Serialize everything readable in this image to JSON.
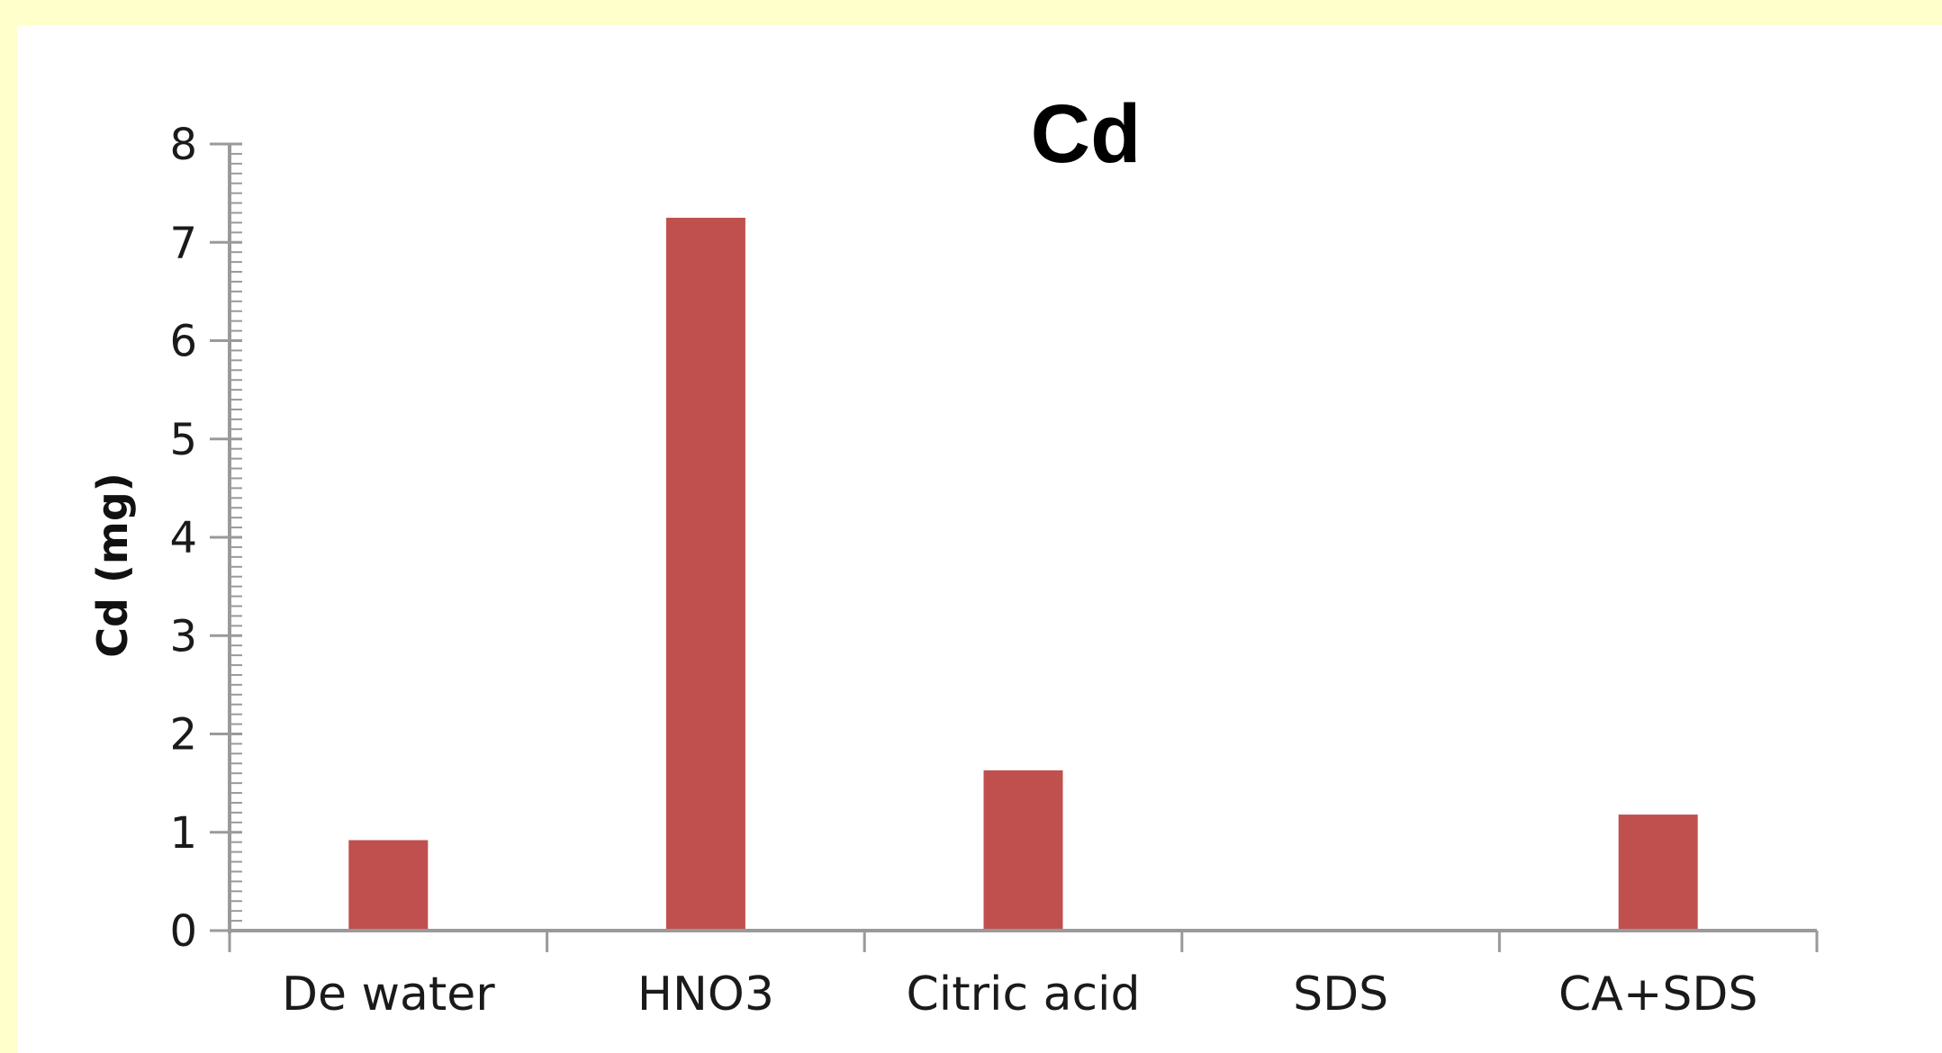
{
  "chart_data": {
    "type": "bar",
    "title": "Cd",
    "xlabel": "",
    "ylabel": "Cd (mg)",
    "categories": [
      "De water",
      "HNO3",
      "Citric acid",
      "SDS",
      "CA+SDS"
    ],
    "values": [
      0.92,
      7.25,
      1.63,
      0.01,
      1.18
    ],
    "ylim": [
      0,
      8
    ],
    "yticks": [
      0,
      1,
      2,
      3,
      4,
      5,
      6,
      7,
      8
    ],
    "grid": false,
    "legend": "none",
    "bar_color": "#C0504D"
  }
}
